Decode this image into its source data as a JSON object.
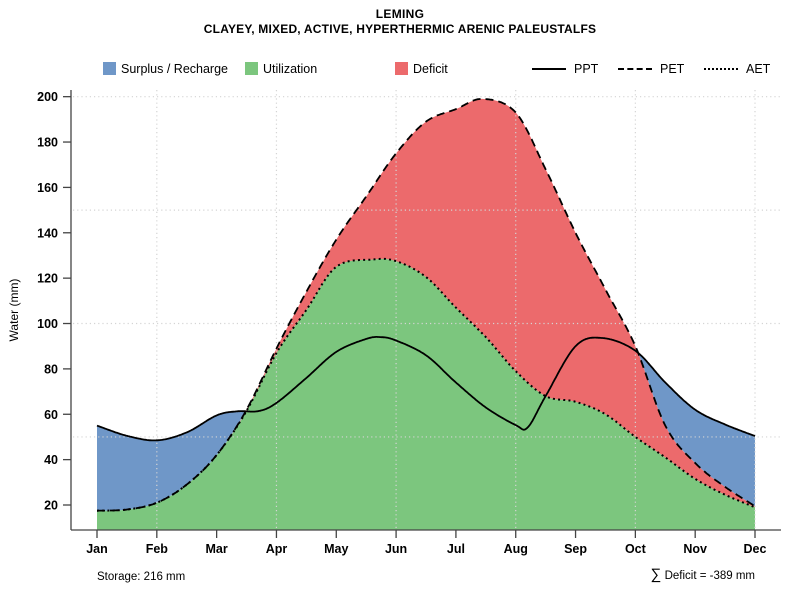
{
  "title": "LEMING",
  "subtitle": "CLAYEY, MIXED, ACTIVE, HYPERTHERMIC ARENIC PALEUSTALFS",
  "legend": {
    "areas": [
      {
        "label": "Surplus / Recharge",
        "color": "#6f97c8"
      },
      {
        "label": "Utilization",
        "color": "#7cc67e"
      },
      {
        "label": "Deficit",
        "color": "#ec6a6c"
      }
    ],
    "lines": [
      {
        "label": "PPT",
        "style": "solid"
      },
      {
        "label": "PET",
        "style": "dashed"
      },
      {
        "label": "AET",
        "style": "dotted"
      }
    ]
  },
  "y_axis": {
    "label": "Water (mm)",
    "ticks": [
      20,
      40,
      60,
      80,
      100,
      120,
      140,
      160,
      180,
      200
    ],
    "gridlines": [
      50,
      100,
      150,
      200
    ]
  },
  "x_axis": {
    "months": [
      "Jan",
      "Feb",
      "Mar",
      "Apr",
      "May",
      "Jun",
      "Jul",
      "Aug",
      "Sep",
      "Oct",
      "Nov",
      "Dec"
    ],
    "gridline_months": [
      "Feb",
      "Apr",
      "Jun",
      "Aug",
      "Oct",
      "Dec"
    ]
  },
  "annotations": {
    "storage": "Storage: 216 mm",
    "deficit_sigma": "∑",
    "deficit_text": " Deficit = -389 mm",
    "storage_mm": 216,
    "deficit_mm": -389
  },
  "colors": {
    "surplus": "#6f97c8",
    "utilization": "#7cc67e",
    "deficit": "#ec6a6c",
    "line": "#000000",
    "gridline": "#d4d4d4",
    "axis": "#444444"
  },
  "chart_data": {
    "type": "area",
    "title": "LEMING",
    "subtitle": "CLAYEY, MIXED, ACTIVE, HYPERTHERMIC ARENIC PALEUSTALFS",
    "xlabel": "",
    "ylabel": "Water (mm)",
    "ylim": [
      9,
      201
    ],
    "grid": "dotted, y at 50/100/150/200, x at even months",
    "legend_position": "top",
    "categories": [
      "Jan",
      "Feb",
      "Mar",
      "Apr",
      "May",
      "Jun",
      "Jul",
      "Aug",
      "Sep",
      "Oct",
      "Nov",
      "Dec"
    ],
    "series": [
      {
        "name": "PPT",
        "style": "solid",
        "monthly_values": [
          55,
          49,
          60,
          65,
          88,
          92,
          74,
          55,
          90,
          88,
          62,
          50
        ]
      },
      {
        "name": "PET",
        "style": "dashed",
        "monthly_values": [
          18,
          21,
          42,
          89,
          137,
          175,
          194,
          193,
          140,
          90,
          39,
          20
        ]
      },
      {
        "name": "AET",
        "style": "dotted",
        "monthly_values": [
          18,
          21,
          42,
          87,
          125,
          128,
          107,
          79,
          66,
          50,
          32,
          19
        ]
      }
    ],
    "areas": [
      {
        "name": "Surplus / Recharge",
        "between": [
          "PPT",
          "PET"
        ],
        "where": "PPT > PET",
        "color": "#6f97c8"
      },
      {
        "name": "Utilization",
        "between": [
          "AET",
          "plot bottom"
        ],
        "color": "#7cc67e"
      },
      {
        "name": "Deficit",
        "between": [
          "PET",
          "AET"
        ],
        "where": "PET > AET",
        "color": "#ec6a6c"
      }
    ],
    "curve_samples": {
      "comment": "x in month units (1=Jan..12=Dec), y in mm; read from plot incl. spline peaks",
      "PPT": [
        [
          1,
          55
        ],
        [
          1.5,
          50.5
        ],
        [
          2,
          48.5
        ],
        [
          2.5,
          52
        ],
        [
          3,
          59.5
        ],
        [
          3.35,
          61.3
        ],
        [
          3.7,
          61.4
        ],
        [
          4,
          65
        ],
        [
          4.5,
          76
        ],
        [
          5,
          87.5
        ],
        [
          5.5,
          93.2
        ],
        [
          5.75,
          94
        ],
        [
          6,
          92.5
        ],
        [
          6.5,
          86
        ],
        [
          7,
          74
        ],
        [
          7.5,
          63
        ],
        [
          8,
          55.2
        ],
        [
          8.2,
          54.2
        ],
        [
          8.5,
          68
        ],
        [
          9,
          90
        ],
        [
          9.45,
          93.6
        ],
        [
          10,
          88
        ],
        [
          10.5,
          74
        ],
        [
          11,
          62
        ],
        [
          11.5,
          55.5
        ],
        [
          12,
          50.4
        ]
      ],
      "PET": [
        [
          1,
          17.5
        ],
        [
          1.5,
          18
        ],
        [
          2,
          21
        ],
        [
          2.5,
          29
        ],
        [
          3,
          42
        ],
        [
          3.5,
          62
        ],
        [
          4,
          89
        ],
        [
          4.5,
          114
        ],
        [
          5,
          137
        ],
        [
          5.5,
          156
        ],
        [
          6,
          175
        ],
        [
          6.5,
          189
        ],
        [
          7,
          194.5
        ],
        [
          7.45,
          199
        ],
        [
          8,
          193
        ],
        [
          8.5,
          168
        ],
        [
          9,
          140
        ],
        [
          9.5,
          115
        ],
        [
          10,
          90
        ],
        [
          10.5,
          55
        ],
        [
          11,
          38.5
        ],
        [
          11.5,
          28
        ],
        [
          12,
          19.5
        ]
      ],
      "AET": [
        [
          1,
          17.5
        ],
        [
          1.5,
          18
        ],
        [
          2,
          21
        ],
        [
          2.5,
          29
        ],
        [
          3,
          42
        ],
        [
          3.5,
          61.5
        ],
        [
          4,
          87
        ],
        [
          4.5,
          106
        ],
        [
          5,
          125
        ],
        [
          5.6,
          128.2
        ],
        [
          6,
          127.5
        ],
        [
          6.5,
          120.5
        ],
        [
          7,
          107
        ],
        [
          7.5,
          94
        ],
        [
          8,
          79
        ],
        [
          8.5,
          68
        ],
        [
          9,
          65.5
        ],
        [
          9.5,
          60
        ],
        [
          10,
          50
        ],
        [
          10.5,
          41
        ],
        [
          11,
          31.5
        ],
        [
          11.5,
          24.5
        ],
        [
          12,
          19
        ]
      ]
    }
  }
}
